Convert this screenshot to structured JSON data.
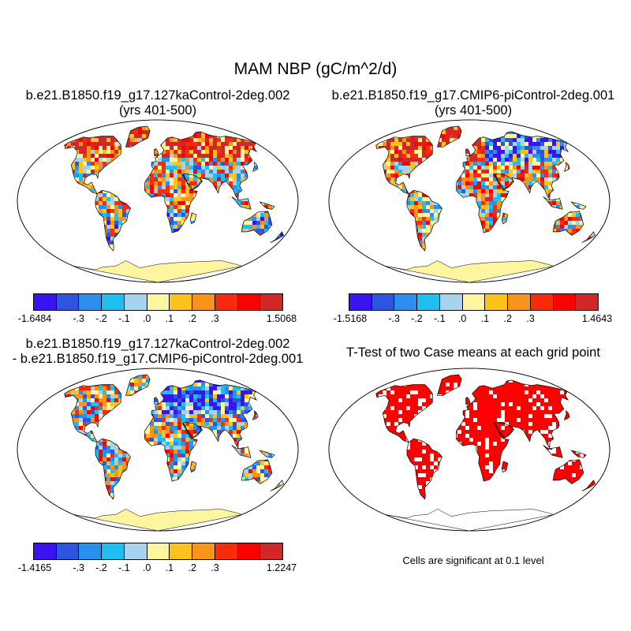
{
  "main_title": "MAM NBP (gC/m^2/d)",
  "panels": [
    {
      "title_line1": "b.e21.B1850.f19_g17.127kaControl-2deg.002",
      "title_line2": "(yrs 401-500)"
    },
    {
      "title_line1": "b.e21.B1850.f19_g17.CMIP6-piControl-2deg.001",
      "title_line2": "(yrs 401-500)"
    },
    {
      "title_line1": "b.e21.B1850.f19_g17.127kaControl-2deg.002",
      "title_line2": "- b.e21.B1850.f19_g17.CMIP6-piControl-2deg.001"
    },
    {
      "title_line1": "T-Test of two Case means at each grid point"
    }
  ],
  "colorbar_colors": [
    "#3b12f0",
    "#2d55e0",
    "#2b8ff0",
    "#1fc0f0",
    "#a7d4ec",
    "#fdf5a0",
    "#fdc21c",
    "#f8941c",
    "#f62c0a",
    "#ff0000",
    "#d02828"
  ],
  "colorbars": [
    {
      "labels": [
        "-1.6484",
        "-.3",
        "-.2",
        "-.1",
        ".0",
        ".1",
        ".2",
        ".3",
        "1.5068"
      ]
    },
    {
      "labels": [
        "-1.5168",
        "-.3",
        "-.2",
        "-.1",
        ".0",
        ".1",
        ".2",
        ".3",
        "1.4643"
      ]
    },
    {
      "labels": [
        "-1.4165",
        "-.3",
        "-.2",
        "-.1",
        ".0",
        ".1",
        ".2",
        ".3",
        "1.2247"
      ]
    }
  ],
  "significance_note": "Cells are significant at 0.1 level",
  "significance_color": "#ff0000"
}
